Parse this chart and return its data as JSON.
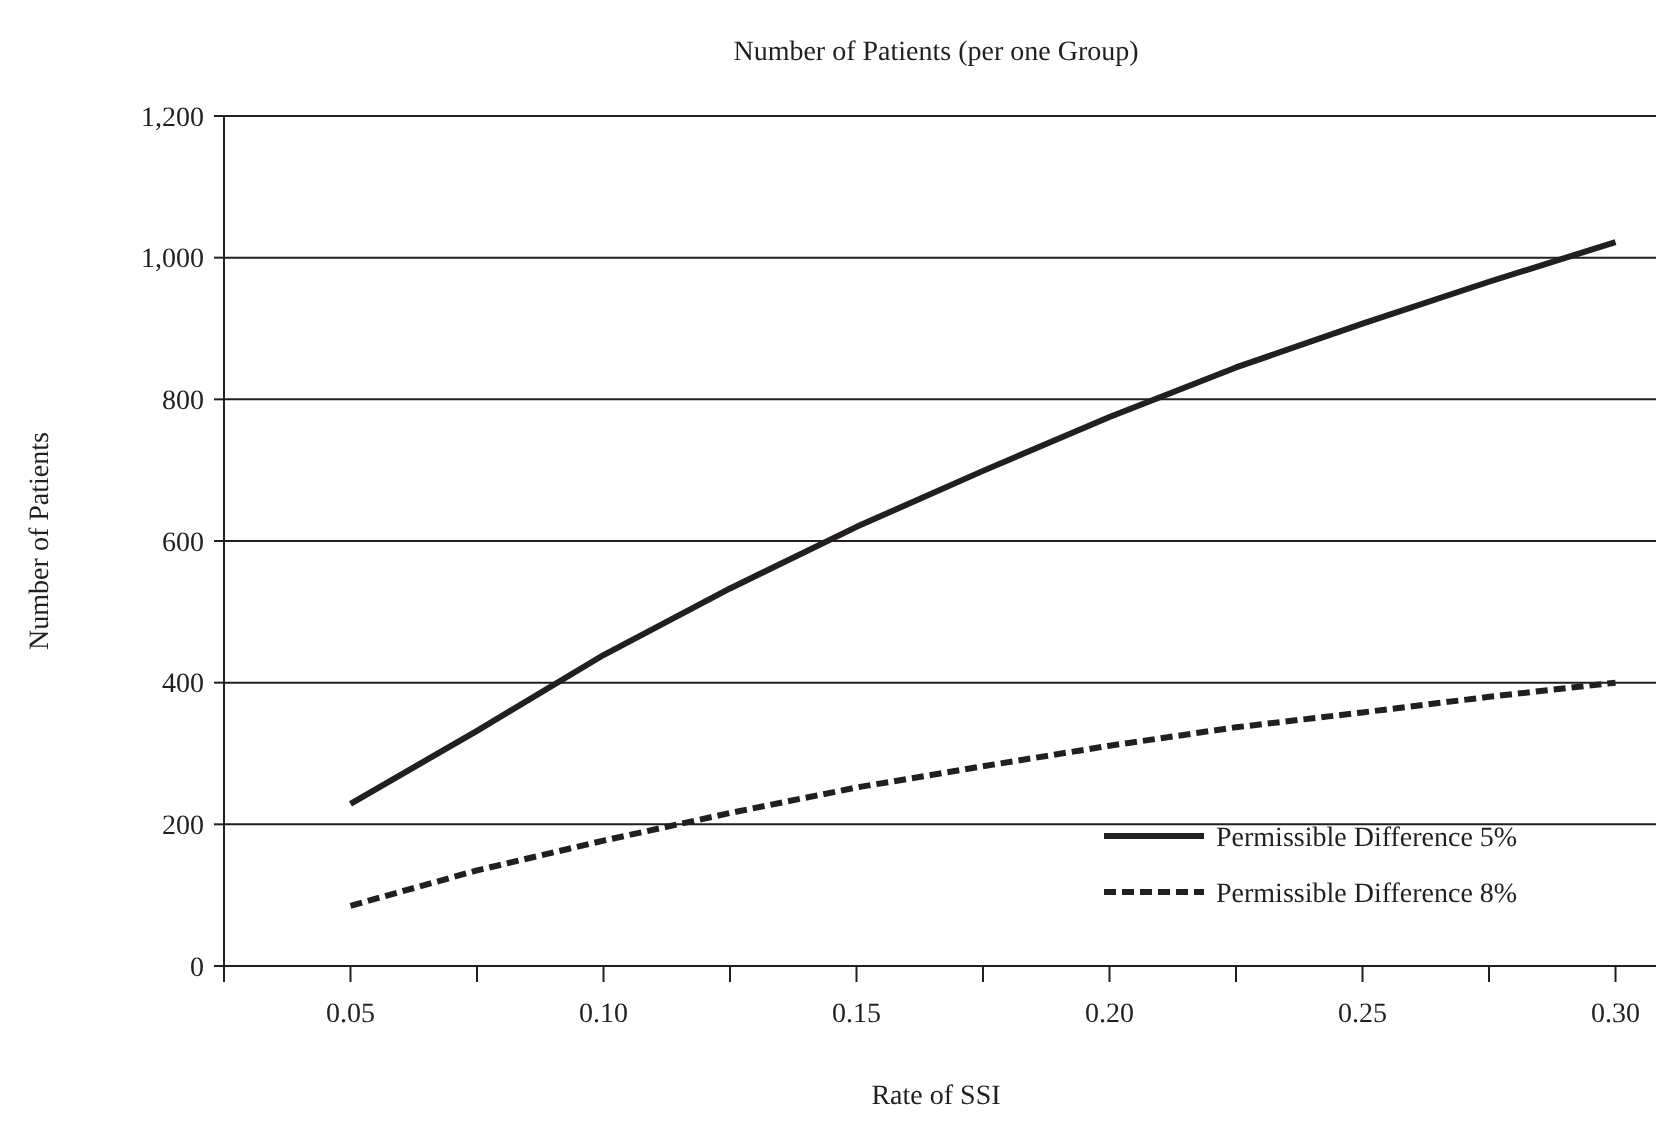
{
  "chart_data": {
    "type": "line",
    "title": "Number of Patients (per one Group)",
    "xlabel": "Rate of SSI",
    "ylabel": "Number of Patients",
    "x": [
      0.05,
      0.075,
      0.1,
      0.125,
      0.15,
      0.175,
      0.2,
      0.225,
      0.25,
      0.275,
      0.3
    ],
    "series": [
      {
        "name": "Permissible Difference 5%",
        "color": "#231f20",
        "line_style": "solid",
        "values": [
          229,
          332,
          439,
          533,
          620,
          699,
          775,
          845,
          907,
          966,
          1022
        ]
      },
      {
        "name": "Permissible Difference 8%",
        "color": "#231f20",
        "line_style": "dashed",
        "values": [
          85,
          135,
          177,
          216,
          252,
          282,
          311,
          337,
          358,
          380,
          400
        ]
      }
    ],
    "xlim": [
      0.025,
      0.308
    ],
    "xticks": [
      {
        "value": 0.025,
        "label": null
      },
      "0.05",
      {
        "value": 0.075,
        "label": null
      },
      {
        "value": 0.1,
        "label": "0.10"
      },
      {
        "value": 0.125,
        "label": null
      },
      {
        "value": 0.15,
        "label": "0.15"
      },
      {
        "value": 0.175,
        "label": null
      },
      {
        "value": 0.2,
        "label": "0.20"
      },
      {
        "value": 0.225,
        "label": null
      },
      {
        "value": 0.25,
        "label": "0.25"
      },
      {
        "value": 0.275,
        "label": null
      },
      {
        "value": 0.3,
        "label": "0.30"
      }
    ],
    "ylim": [
      0,
      1200
    ],
    "yticks": [
      {
        "value": 0,
        "label": "0"
      },
      {
        "value": 200,
        "label": "200"
      },
      {
        "value": 400,
        "label": "400"
      },
      {
        "value": 600,
        "label": "600"
      },
      {
        "value": 800,
        "label": "800"
      },
      {
        "value": 1000,
        "label": "1,000"
      },
      {
        "value": 1200,
        "label": "1,200"
      }
    ],
    "grid": "y",
    "legend": "bottom right",
    "marker": "none"
  }
}
